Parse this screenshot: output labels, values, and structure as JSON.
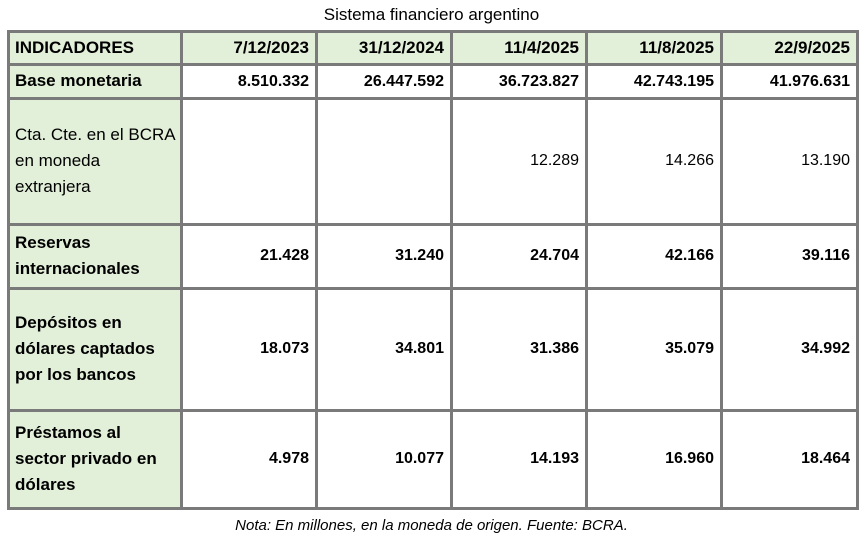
{
  "title": "Sistema financiero argentino",
  "note": "Nota: En millones, en la moneda de origen. Fuente: BCRA.",
  "colors": {
    "header_bg": "#e2efd9",
    "row_label_bg": "#e2efd9",
    "border": "#7a7a7a",
    "data_bg": "#ffffff"
  },
  "table": {
    "header": [
      "INDICADORES",
      "7/12/2023",
      "31/12/2024",
      "11/4/2025",
      "11/8/2025",
      "22/9/2025"
    ],
    "rows": [
      {
        "label": "Base monetaria",
        "style": "bold",
        "values": [
          "8.510.332",
          "26.447.592",
          "36.723.827",
          "42.743.195",
          "41.976.631"
        ]
      },
      {
        "label": "Cta. Cte. en el BCRA en moneda extranjera",
        "style": "regular",
        "values": [
          "",
          "",
          "12.289",
          "14.266",
          "13.190"
        ]
      },
      {
        "label": "Reservas internacionales",
        "style": "bold",
        "values": [
          "21.428",
          "31.240",
          "24.704",
          "42.166",
          "39.116"
        ]
      },
      {
        "label": "Depósitos en dólares captados por los bancos",
        "style": "bold",
        "values": [
          "18.073",
          "34.801",
          "31.386",
          "35.079",
          "34.992"
        ]
      },
      {
        "label": "Préstamos al sector privado en dólares",
        "style": "bold",
        "values": [
          "4.978",
          "10.077",
          "14.193",
          "16.960",
          "18.464"
        ]
      }
    ]
  },
  "chart_data": {
    "type": "table",
    "title": "Sistema financiero argentino",
    "unit_note": "En millones, en la moneda de origen",
    "source": "BCRA",
    "categories": [
      "7/12/2023",
      "31/12/2024",
      "11/4/2025",
      "11/8/2025",
      "22/9/2025"
    ],
    "series": [
      {
        "name": "Base monetaria",
        "values": [
          8510332,
          26447592,
          36723827,
          42743195,
          41976631
        ]
      },
      {
        "name": "Cta. Cte. en el BCRA en moneda extranjera",
        "values": [
          null,
          null,
          12289,
          14266,
          13190
        ]
      },
      {
        "name": "Reservas internacionales",
        "values": [
          21428,
          31240,
          24704,
          42166,
          39116
        ]
      },
      {
        "name": "Depósitos en dólares captados por los bancos",
        "values": [
          18073,
          34801,
          31386,
          35079,
          34992
        ]
      },
      {
        "name": "Préstamos al sector privado en dólares",
        "values": [
          4978,
          10077,
          14193,
          16960,
          18464
        ]
      }
    ]
  }
}
